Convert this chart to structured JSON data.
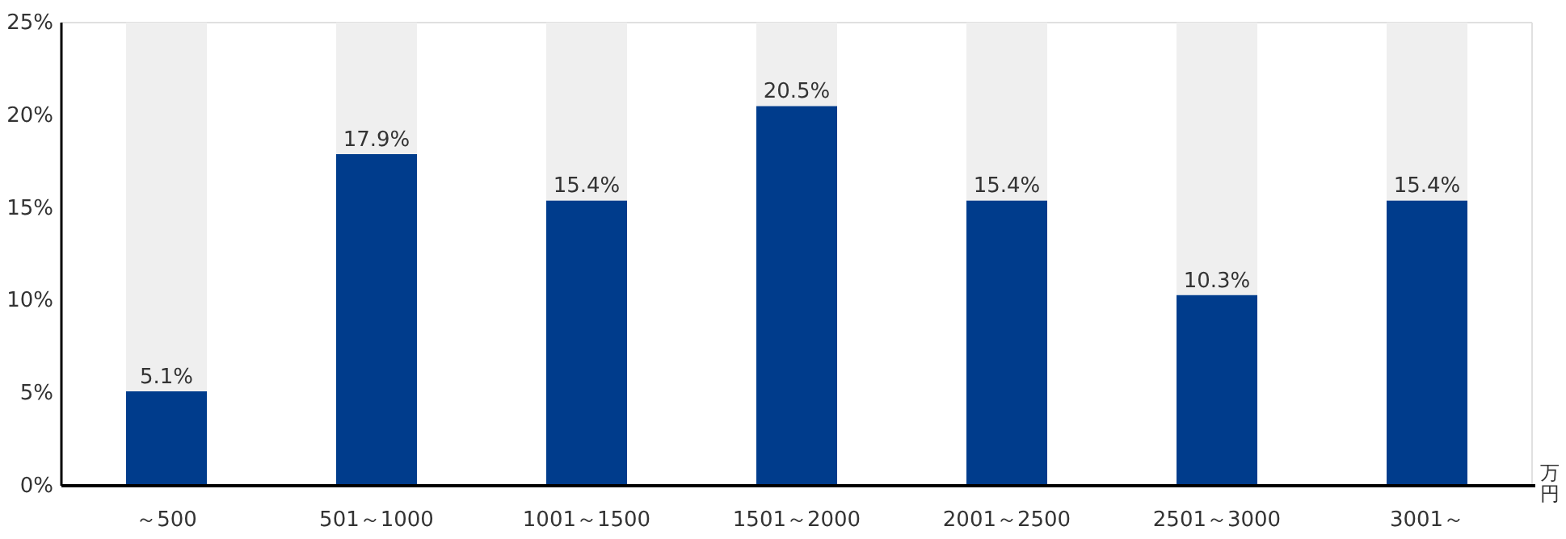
{
  "chart_data": {
    "type": "bar",
    "xlabel": "万円",
    "categories": [
      "～500",
      "501～1000",
      "1001～1500",
      "1501～2000",
      "2001～2500",
      "2501～3000",
      "3001～"
    ],
    "series": [
      {
        "color": "#003c8c",
        "values": [
          5.1,
          17.9,
          15.4,
          20.5,
          15.4,
          10.3,
          15.4
        ],
        "value_labels": [
          "5.1%",
          "17.9%",
          "15.4%",
          "20.5%",
          "15.4%",
          "10.3%",
          "15.4%"
        ]
      },
      {
        "color": "#efefef",
        "values": [
          19.9,
          7.1,
          9.6,
          4.5,
          9.6,
          14.7,
          9.6
        ]
      }
    ],
    "stacked": true,
    "ylim": [
      0,
      25
    ],
    "yticks": [
      {
        "value": 0,
        "label": "0%"
      },
      {
        "value": 5,
        "label": "5%"
      },
      {
        "value": 10,
        "label": "10%"
      },
      {
        "value": 15,
        "label": "15%"
      },
      {
        "value": 20,
        "label": "20%"
      },
      {
        "value": 25,
        "label": "25%"
      }
    ],
    "grid": false
  }
}
